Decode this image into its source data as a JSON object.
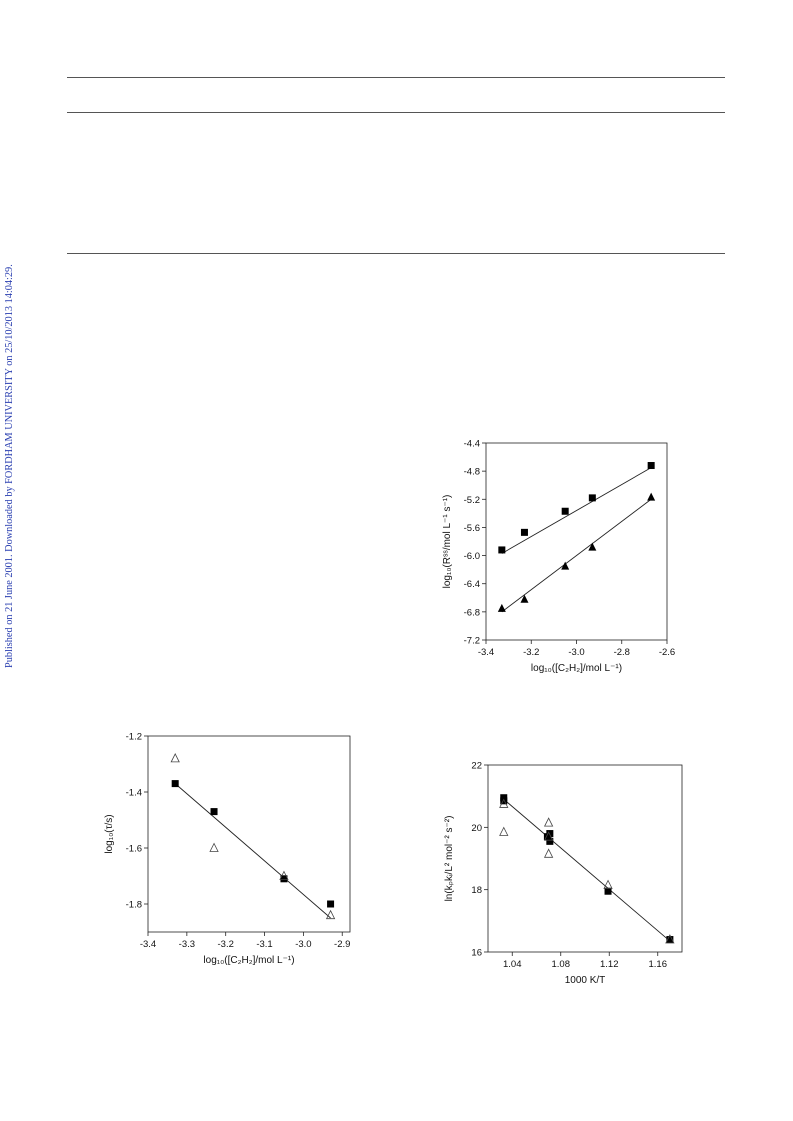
{
  "side_note": "Published on 21 June 2001. Downloaded by FORDHAM UNIVERSITY on 25/10/2013 14:04:29.",
  "chart_data": [
    {
      "type": "scatter",
      "title": "",
      "xlabel": "log₁₀([C₂H₂]/mol L⁻¹)",
      "ylabel": "log₁₀(Rˢˢ/mol L⁻¹ s⁻¹)",
      "xlim": [
        -3.4,
        -2.6
      ],
      "ylim": [
        -7.2,
        -4.4
      ],
      "xticks": [
        "-3.4",
        "-3.2",
        "-3.0",
        "-2.8",
        "-2.6"
      ],
      "yticks": [
        "-4.4",
        "-4.8",
        "-5.2",
        "-5.6",
        "-6.0",
        "-6.4",
        "-6.8",
        "-7.2"
      ],
      "grid": false,
      "series": [
        {
          "marker": "filled-square",
          "x": [
            -3.33,
            -3.23,
            -3.05,
            -2.93,
            -2.67
          ],
          "y": [
            -5.92,
            -5.67,
            -5.37,
            -5.18,
            -4.72
          ],
          "fit": [
            [
              -3.33,
              -5.97
            ],
            [
              -2.67,
              -4.75
            ]
          ]
        },
        {
          "marker": "filled-triangle",
          "x": [
            -3.33,
            -3.23,
            -3.05,
            -2.93,
            -2.67
          ],
          "y": [
            -6.75,
            -6.62,
            -6.15,
            -5.88,
            -5.17
          ],
          "fit": [
            [
              -3.33,
              -6.8
            ],
            [
              -2.67,
              -5.2
            ]
          ]
        }
      ]
    },
    {
      "type": "scatter",
      "title": "",
      "xlabel": "log₁₀([C₂H₂]/mol L⁻¹)",
      "ylabel": "log₁₀(τ/s)",
      "xlim": [
        -3.4,
        -2.88
      ],
      "ylim": [
        -1.9,
        -1.2
      ],
      "xticks": [
        "-3.4",
        "-3.3",
        "-3.2",
        "-3.1",
        "-3.0",
        "-2.9"
      ],
      "yticks": [
        "-1.2",
        "-1.4",
        "-1.6",
        "-1.8"
      ],
      "grid": false,
      "series": [
        {
          "marker": "filled-square",
          "x": [
            -3.33,
            -3.23,
            -3.05,
            -2.93
          ],
          "y": [
            -1.37,
            -1.47,
            -1.71,
            -1.8
          ],
          "fit": [
            [
              -3.33,
              -1.37
            ],
            [
              -2.93,
              -1.85
            ]
          ]
        },
        {
          "marker": "open-triangle",
          "x": [
            -3.33,
            -3.23,
            -3.05,
            -2.93
          ],
          "y": [
            -1.28,
            -1.6,
            -1.7,
            -1.84
          ]
        }
      ]
    },
    {
      "type": "scatter",
      "title": "",
      "xlabel": "1000 K/T",
      "ylabel": "ln(kₚkᵢ/L² mol⁻² s⁻²)",
      "xlim": [
        1.02,
        1.18
      ],
      "ylim": [
        16,
        22
      ],
      "xticks": [
        "1.04",
        "1.08",
        "1.12",
        "1.16"
      ],
      "yticks": [
        "22",
        "20",
        "18",
        "16"
      ],
      "grid": false,
      "series": [
        {
          "marker": "filled-square",
          "x": [
            1.033,
            1.033,
            1.069,
            1.071,
            1.071,
            1.119,
            1.17
          ],
          "y": [
            20.95,
            20.85,
            19.7,
            19.8,
            19.55,
            17.95,
            16.4
          ],
          "fit": [
            [
              1.033,
              20.9
            ],
            [
              1.17,
              16.35
            ]
          ]
        },
        {
          "marker": "open-triangle",
          "x": [
            1.033,
            1.033,
            1.07,
            1.07,
            1.07,
            1.119,
            1.17
          ],
          "y": [
            20.75,
            19.85,
            20.15,
            19.7,
            19.15,
            18.15,
            16.4
          ]
        }
      ]
    }
  ]
}
